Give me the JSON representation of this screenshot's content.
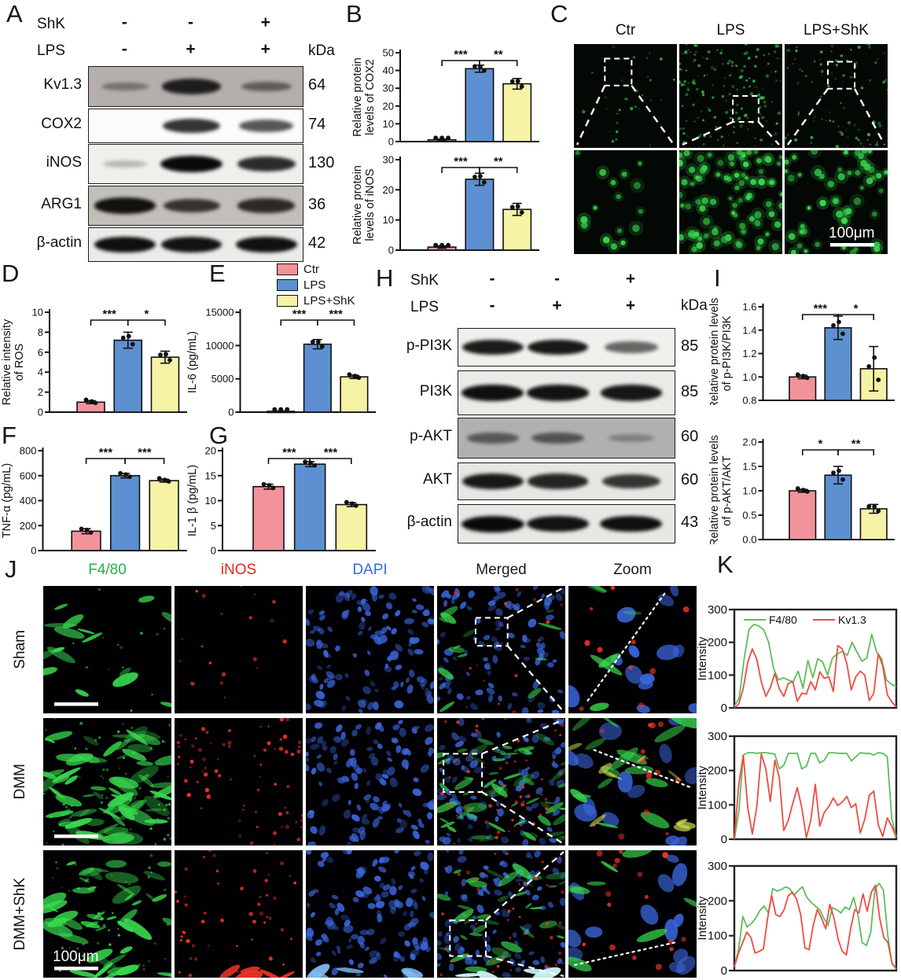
{
  "figure": {
    "panels": {
      "a": {
        "label": "A"
      },
      "b": {
        "label": "B"
      },
      "c": {
        "label": "C",
        "columns": [
          "Ctr",
          "LPS",
          "LPS+ShK"
        ],
        "scale_bar": "100μm"
      },
      "d": {
        "label": "D"
      },
      "e": {
        "label": "E"
      },
      "f": {
        "label": "F"
      },
      "g": {
        "label": "G"
      },
      "h": {
        "label": "H"
      },
      "i": {
        "label": "I"
      },
      "j": {
        "label": "J",
        "columns": [
          {
            "label": "F4/80",
            "color": "#22b14c"
          },
          {
            "label": "iNOS",
            "color": "#f02318"
          },
          {
            "label": "DAPI",
            "color": "#2f6ee6"
          },
          {
            "label": "Merged",
            "color": "#1a1a1a"
          },
          {
            "label": "Zoom",
            "color": "#1a1a1a"
          }
        ],
        "rows": [
          "Sham",
          "DMM",
          "DMM+ShK"
        ],
        "scale_bar": "100μm"
      },
      "k": {
        "label": "K",
        "ylabel": "Intensity"
      }
    },
    "group_legend": [
      {
        "label": "Ctr"
      },
      {
        "label": "LPS"
      },
      {
        "label": "LPS+ShK"
      }
    ]
  },
  "colors": {
    "bars": [
      "#F2939B",
      "#5D90D0",
      "#F6F3A6"
    ],
    "line_green": "#5CBE5C",
    "line_red": "#F04B40",
    "micro_green": "#38d94e",
    "micro_red": "#f03228",
    "micro_blue": "#3b66dd"
  },
  "blots": {
    "a": {
      "kda_header": "kDa",
      "treatment_rows": [
        {
          "label": "ShK",
          "values": [
            "-",
            "-",
            "+"
          ]
        },
        {
          "label": "LPS",
          "values": [
            "-",
            "+",
            "+"
          ]
        }
      ],
      "rows": [
        {
          "label": "Kv1.3",
          "kda": "64",
          "bg": "#b4afac",
          "bands": [
            0.22,
            0.85,
            0.38
          ]
        },
        {
          "label": "COX2",
          "kda": "74",
          "bg": "#fbfbf9",
          "bands": [
            0,
            0.78,
            0.6
          ]
        },
        {
          "label": "iNOS",
          "kda": "130",
          "bg": "#f1efec",
          "bands": [
            0.06,
            1,
            0.82
          ]
        },
        {
          "label": "ARG1",
          "kda": "36",
          "bg": "#c2beba",
          "bands": [
            0.95,
            0.72,
            0.78
          ]
        },
        {
          "label": "β-actin",
          "kda": "42",
          "bg": "#edebe8",
          "bands": [
            0.97,
            0.95,
            0.96
          ]
        }
      ]
    },
    "h": {
      "kda_header": "kDa",
      "treatment_rows": [
        {
          "label": "ShK",
          "values": [
            "-",
            "-",
            "+"
          ]
        },
        {
          "label": "LPS",
          "values": [
            "-",
            "+",
            "+"
          ]
        }
      ],
      "rows": [
        {
          "label": "p-PI3K",
          "kda": "85",
          "bg": "#f2f0ed",
          "bands": [
            0.9,
            0.92,
            0.5
          ]
        },
        {
          "label": "PI3K",
          "kda": "85",
          "bg": "#eceae7",
          "bands": [
            0.97,
            0.95,
            0.93
          ]
        },
        {
          "label": "p-AKT",
          "kda": "60",
          "bg": "#b2b0ae",
          "bands": [
            0.42,
            0.46,
            0.12
          ]
        },
        {
          "label": "AKT",
          "kda": "60",
          "bg": "#e8e6e3",
          "bands": [
            0.92,
            0.85,
            0.76
          ]
        },
        {
          "label": "β-actin",
          "kda": "43",
          "bg": "#e9e7e4",
          "bands": [
            1,
            0.95,
            0.97
          ]
        }
      ]
    }
  },
  "chart_data": [
    {
      "id": "b_cox2",
      "panel": "B",
      "type": "bar",
      "categories": [
        "Ctr",
        "LPS",
        "LPS+ShK"
      ],
      "ylabel": [
        "Relative protein",
        "levels of COX2"
      ],
      "values": [
        1,
        41,
        32.5
      ],
      "errors": [
        0.4,
        2,
        3
      ],
      "ylim": [
        0,
        50
      ],
      "yticks": [
        "0",
        "10",
        "20",
        "30",
        "40",
        "50"
      ],
      "sig": [
        {
          "a": 0,
          "b": 1,
          "label": "***"
        },
        {
          "a": 1,
          "b": 2,
          "label": "**"
        }
      ]
    },
    {
      "id": "b_inos",
      "panel": "B",
      "type": "bar",
      "categories": [
        "Ctr",
        "LPS",
        "LPS+ShK"
      ],
      "ylabel": [
        "Relative protein",
        "levels of iNOS"
      ],
      "values": [
        1,
        23.5,
        13.5
      ],
      "errors": [
        0.4,
        2,
        2
      ],
      "ylim": [
        0,
        30
      ],
      "yticks": [
        "0",
        "10",
        "20",
        "30"
      ],
      "sig": [
        {
          "a": 0,
          "b": 1,
          "label": "***"
        },
        {
          "a": 1,
          "b": 2,
          "label": "**"
        }
      ]
    },
    {
      "id": "d_ros",
      "panel": "D",
      "type": "bar",
      "categories": [
        "Ctr",
        "LPS",
        "LPS+ShK"
      ],
      "ylabel": [
        "Relative intensity",
        "of ROS"
      ],
      "values": [
        1,
        7.2,
        5.5
      ],
      "errors": [
        0.15,
        0.8,
        0.6
      ],
      "ylim": [
        0,
        10
      ],
      "yticks": [
        "0",
        "2",
        "4",
        "6",
        "8",
        "10"
      ],
      "sig": [
        {
          "a": 0,
          "b": 1,
          "label": "***"
        },
        {
          "a": 1,
          "b": 2,
          "label": "*"
        }
      ]
    },
    {
      "id": "e_il6",
      "panel": "E",
      "type": "bar",
      "categories": [
        "Ctr",
        "LPS",
        "LPS+ShK"
      ],
      "ylabel": [
        "IL-6 (pg/mL)"
      ],
      "values": [
        120,
        10200,
        5300
      ],
      "errors": [
        60,
        700,
        250
      ],
      "ylim": [
        0,
        15000
      ],
      "yticks": [
        "0",
        "5000",
        "10000",
        "15000"
      ],
      "sig": [
        {
          "a": 0,
          "b": 1,
          "label": "***"
        },
        {
          "a": 1,
          "b": 2,
          "label": "***"
        }
      ]
    },
    {
      "id": "f_tnfa",
      "panel": "F",
      "type": "bar",
      "categories": [
        "Ctr",
        "LPS",
        "LPS+ShK"
      ],
      "ylabel": [
        "TNF-α (pg/mL)"
      ],
      "values": [
        155,
        600,
        560
      ],
      "errors": [
        20,
        18,
        12
      ],
      "ylim": [
        0,
        800
      ],
      "yticks": [
        "0",
        "200",
        "400",
        "600",
        "800"
      ],
      "sig": [
        {
          "a": 0,
          "b": 1,
          "label": "***"
        },
        {
          "a": 1,
          "b": 2,
          "label": "***"
        }
      ]
    },
    {
      "id": "g_il1b",
      "panel": "G",
      "type": "bar",
      "categories": [
        "Ctr",
        "LPS",
        "LPS+ShK"
      ],
      "ylabel": [
        "IL-1 β (pg/mL)"
      ],
      "values": [
        12.8,
        17.3,
        9.2
      ],
      "errors": [
        0.5,
        0.5,
        0.4
      ],
      "ylim": [
        0,
        20
      ],
      "yticks": [
        "0",
        "5",
        "10",
        "15",
        "20"
      ],
      "sig": [
        {
          "a": 0,
          "b": 1,
          "label": "***"
        },
        {
          "a": 1,
          "b": 2,
          "label": "***"
        }
      ]
    },
    {
      "id": "i_pi3k",
      "panel": "I",
      "type": "bar",
      "categories": [
        "Ctr",
        "LPS",
        "LPS+ShK"
      ],
      "ylabel": [
        "Relative protein levels",
        "of p-PI3K/PI3K"
      ],
      "values": [
        1.0,
        1.42,
        1.07
      ],
      "errors": [
        0.015,
        0.1,
        0.19
      ],
      "ylim": [
        0.8,
        1.6
      ],
      "yticks": [
        "0.8",
        "1.0",
        "1.2",
        "1.4",
        "1.6"
      ],
      "sig": [
        {
          "a": 0,
          "b": 1,
          "label": "***"
        },
        {
          "a": 1,
          "b": 2,
          "label": "*"
        }
      ]
    },
    {
      "id": "i_akt",
      "panel": "I",
      "type": "bar",
      "categories": [
        "Ctr",
        "LPS",
        "LPS+ShK"
      ],
      "ylabel": [
        "Relative protein levels",
        "of p-AKT/AKT"
      ],
      "values": [
        1.0,
        1.32,
        0.63
      ],
      "errors": [
        0.03,
        0.18,
        0.09
      ],
      "ylim": [
        0,
        2
      ],
      "yticks": [
        "0.0",
        "0.5",
        "1.0",
        "1.5",
        "2.0"
      ],
      "sig": [
        {
          "a": 0,
          "b": 1,
          "label": "*"
        },
        {
          "a": 1,
          "b": 2,
          "label": "**"
        }
      ]
    },
    {
      "id": "k_sham",
      "panel": "K",
      "type": "line",
      "title": "Sham",
      "ylabel": "Intensity",
      "ylim": [
        0,
        300
      ],
      "yticks": [
        "0",
        "100",
        "200",
        "300"
      ],
      "legend": true,
      "series": [
        {
          "name": "F4/80",
          "color": "#5CBE5C",
          "values": [
            5,
            30,
            150,
            240,
            255,
            250,
            238,
            200,
            120,
            85,
            92,
            85,
            80,
            112,
            60,
            145,
            92,
            150,
            140,
            100,
            152,
            165,
            172,
            160,
            200,
            170,
            142,
            152,
            225,
            170,
            150,
            85,
            72,
            65
          ]
        },
        {
          "name": "Kv1.3",
          "color": "#F04B40",
          "values": [
            0,
            12,
            60,
            140,
            180,
            148,
            80,
            35,
            62,
            105,
            58,
            35,
            75,
            80,
            20,
            45,
            42,
            80,
            55,
            110,
            90,
            95,
            50,
            190,
            180,
            135,
            55,
            95,
            112,
            100,
            22,
            45,
            165,
            128,
            40,
            18,
            3
          ]
        }
      ]
    },
    {
      "id": "k_dmm",
      "panel": "K",
      "type": "line",
      "title": "DMM",
      "ylabel": "Intensity",
      "ylim": [
        0,
        300
      ],
      "yticks": [
        "0",
        "100",
        "200",
        "300"
      ],
      "legend": false,
      "series": [
        {
          "name": "F4/80",
          "color": "#5CBE5C",
          "values": [
            0,
            80,
            245,
            252,
            252,
            250,
            252,
            252,
            250,
            248,
            205,
            215,
            250,
            250,
            250,
            205,
            212,
            250,
            250,
            222,
            230,
            252,
            252,
            250,
            250,
            250,
            228,
            240,
            252,
            250,
            250,
            245,
            252,
            250,
            240,
            60,
            5
          ]
        },
        {
          "name": "Kv1.3",
          "color": "#F04B40",
          "values": [
            0,
            160,
            245,
            90,
            15,
            95,
            248,
            205,
            110,
            230,
            180,
            25,
            55,
            105,
            150,
            92,
            5,
            55,
            160,
            38,
            78,
            95,
            120,
            98,
            108,
            125,
            92,
            103,
            18,
            58,
            128,
            140,
            42,
            8,
            62,
            38,
            5
          ]
        }
      ]
    },
    {
      "id": "k_dmmshk",
      "panel": "K",
      "type": "line",
      "title": "DMM+ShK",
      "ylabel": "Intensity",
      "ylim": [
        0,
        300
      ],
      "yticks": [
        "0",
        "100",
        "200",
        "300"
      ],
      "legend": false,
      "series": [
        {
          "name": "F4/80",
          "color": "#5CBE5C",
          "values": [
            10,
            60,
            155,
            125,
            135,
            150,
            172,
            185,
            165,
            235,
            228,
            232,
            240,
            235,
            215,
            230,
            240,
            210,
            196,
            185,
            175,
            150,
            130,
            180,
            175,
            165,
            182,
            175,
            210,
            160,
            80,
            72,
            110,
            235,
            250,
            230,
            100,
            20,
            5
          ]
        },
        {
          "name": "Kv1.3",
          "color": "#F04B40",
          "values": [
            10,
            50,
            80,
            110,
            95,
            50,
            55,
            62,
            150,
            215,
            160,
            155,
            175,
            215,
            225,
            205,
            160,
            65,
            60,
            130,
            175,
            150,
            120,
            190,
            150,
            90,
            55,
            45,
            120,
            175,
            165,
            220,
            170,
            225,
            245,
            150,
            95,
            80,
            20,
            5
          ]
        }
      ]
    }
  ]
}
